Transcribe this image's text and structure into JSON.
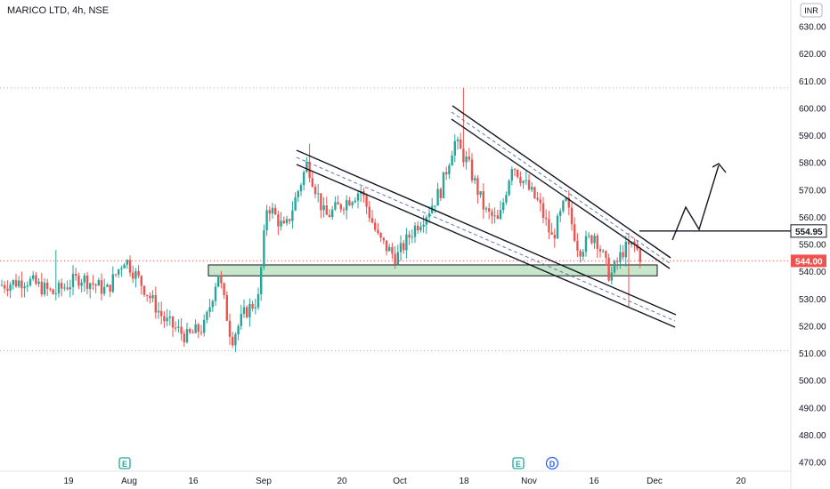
{
  "header": {
    "symbol_title": "MARICO LTD, 4h, NSE"
  },
  "currency_button": "INR",
  "colors": {
    "up": "#26a69a",
    "down": "#ef5350",
    "support_zone_fill": "#c8e6c9",
    "dotted_line": "#ef5350",
    "price_label_bg": "#ef5350",
    "event_E": "#26a69a",
    "event_D": "#2962ff"
  },
  "chart_data": {
    "type": "candlestick",
    "title": "MARICO LTD, 4h, NSE",
    "ylim": [
      465,
      635
    ],
    "y_ticks": [
      "630.00",
      "620.00",
      "610.00",
      "600.00",
      "590.00",
      "580.00",
      "570.00",
      "560.00",
      "550.00",
      "540.00",
      "530.00",
      "520.00",
      "510.00",
      "500.00",
      "490.00",
      "480.00",
      "470.00"
    ],
    "y_tick_values": [
      630,
      620,
      610,
      600,
      590,
      580,
      570,
      560,
      550,
      540,
      530,
      520,
      510,
      500,
      490,
      480,
      470
    ],
    "x_ticks": [
      "19",
      "Aug",
      "16",
      "Sep",
      "20",
      "Oct",
      "18",
      "Nov",
      "16",
      "Dec",
      "20"
    ],
    "current_price": "544.00",
    "current_price_value": 544,
    "marked_level": "554.95",
    "marked_level_value": 554.95,
    "dotted_levels": [
      607.5,
      544,
      511
    ],
    "support_zone": [
      538.5,
      542.5
    ],
    "grid": false,
    "events": [
      {
        "label": "E",
        "after_tick": "Aug"
      },
      {
        "label": "E",
        "after_tick": "Nov"
      },
      {
        "label": "D",
        "after_tick": "Nov"
      }
    ],
    "candles_ohlc_summary": "approx. 4h candles from mid-July to late November; price rose from ~520 to a high of ~608 in mid-October, then declined in a falling wedge to ~544"
  }
}
